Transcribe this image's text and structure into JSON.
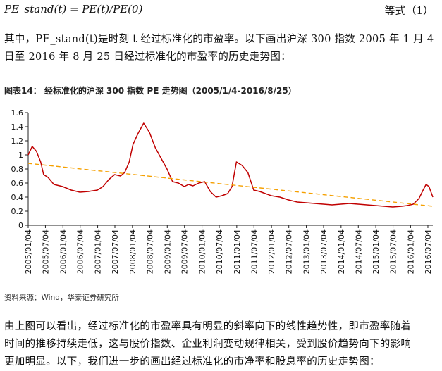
{
  "formula": {
    "expression": "PE_stand(t) = PE(t)/PE(0)",
    "tag": "等式（1）"
  },
  "intro": {
    "line1": "其中，PE_stand(t)是时刻 t 经过标准化的市盈率。以下画出沪深 300 指数 2005 年 1 月 4",
    "line2": "日至 2016 年 8 月 25 日经过标准化的市盈率的历史走势图："
  },
  "figure": {
    "title": "图表14：  经标准化的沪深 300 指数 PE 走势图（2005/1/4-2016/8/25）",
    "source": "资料来源：Wind，华泰证券研究所"
  },
  "colors": {
    "rule": "#b00000",
    "series": "#c00000",
    "trend": "#f5a000"
  },
  "chart_data": {
    "type": "line",
    "title": "",
    "xlabel": "",
    "ylabel": "",
    "ylim": [
      0,
      1.6
    ],
    "yticks": [
      "0",
      "0.2",
      "0.4",
      "0.6",
      "0.8",
      "1",
      "1.2",
      "1.4",
      "1.6"
    ],
    "xticks": [
      "2005/01/04",
      "2005/07/04",
      "2006/01/04",
      "2006/07/04",
      "2007/01/04",
      "2007/07/04",
      "2008/01/04",
      "2008/07/04",
      "2009/01/04",
      "2009/07/04",
      "2010/01/04",
      "2010/07/04",
      "2011/01/04",
      "2011/07/04",
      "2012/01/04",
      "2012/07/04",
      "2013/01/04",
      "2013/07/04",
      "2014/01/04",
      "2014/07/04",
      "2015/01/04",
      "2015/07/04",
      "2016/01/04",
      "2016/07/04"
    ],
    "grid": false,
    "legend": "none",
    "series": [
      {
        "style": "solid",
        "x": [
          "2005/01/04",
          "2005/02/15",
          "2005/04/01",
          "2005/05/15",
          "2005/06/15",
          "2005/08/01",
          "2005/10/01",
          "2006/01/01",
          "2006/04/01",
          "2006/07/01",
          "2006/10/01",
          "2007/01/01",
          "2007/03/01",
          "2007/05/01",
          "2007/07/01",
          "2007/09/01",
          "2007/10/15",
          "2007/12/01",
          "2008/01/10",
          "2008/03/01",
          "2008/05/01",
          "2008/07/01",
          "2008/09/01",
          "2008/11/01",
          "2009/01/01",
          "2009/03/01",
          "2009/05/01",
          "2009/07/01",
          "2009/08/15",
          "2009/10/01",
          "2009/12/01",
          "2010/02/01",
          "2010/04/01",
          "2010/06/01",
          "2010/08/01",
          "2010/10/01",
          "2010/11/15",
          "2011/01/01",
          "2011/03/01",
          "2011/05/01",
          "2011/07/01",
          "2011/09/01",
          "2011/11/01",
          "2012/01/01",
          "2012/04/01",
          "2012/07/01",
          "2012/10/01",
          "2013/01/01",
          "2013/04/01",
          "2013/07/01",
          "2013/10/01",
          "2014/01/01",
          "2014/04/01",
          "2014/07/01",
          "2014/10/01",
          "2015/01/01",
          "2015/04/01",
          "2015/07/01",
          "2015/10/01",
          "2015/12/01",
          "2016/02/01",
          "2016/04/01",
          "2016/05/15",
          "2016/06/15",
          "2016/07/15",
          "2016/08/25"
        ],
        "values": [
          1.0,
          1.12,
          1.05,
          0.9,
          0.72,
          0.68,
          0.58,
          0.55,
          0.5,
          0.47,
          0.48,
          0.5,
          0.55,
          0.65,
          0.72,
          0.7,
          0.75,
          0.9,
          1.15,
          1.3,
          1.45,
          1.32,
          1.1,
          0.95,
          0.8,
          0.62,
          0.6,
          0.55,
          0.58,
          0.56,
          0.6,
          0.62,
          0.48,
          0.4,
          0.42,
          0.45,
          0.55,
          0.9,
          0.85,
          0.75,
          0.5,
          0.48,
          0.45,
          0.42,
          0.4,
          0.36,
          0.33,
          0.32,
          0.31,
          0.3,
          0.29,
          0.3,
          0.31,
          0.3,
          0.29,
          0.28,
          0.27,
          0.26,
          0.27,
          0.28,
          0.3,
          0.38,
          0.5,
          0.58,
          0.55,
          0.4
        ]
      },
      {
        "style": "dashed",
        "x": [
          "2005/01/04",
          "2016/08/25"
        ],
        "values": [
          0.88,
          0.27
        ]
      }
    ]
  },
  "conclusion": {
    "line1": "由上图可以看出，经过标准化的市盈率具有明显的斜率向下的线性趋势性，即市盈率随着",
    "line2": "时间的推移持续走低，这与股价指数、企业利润变动规律相关，受到股价趋势向下的影响",
    "line3": "更加明显。以下，我们进一步的画出经过标准化的市净率和股息率的历史走势图："
  }
}
